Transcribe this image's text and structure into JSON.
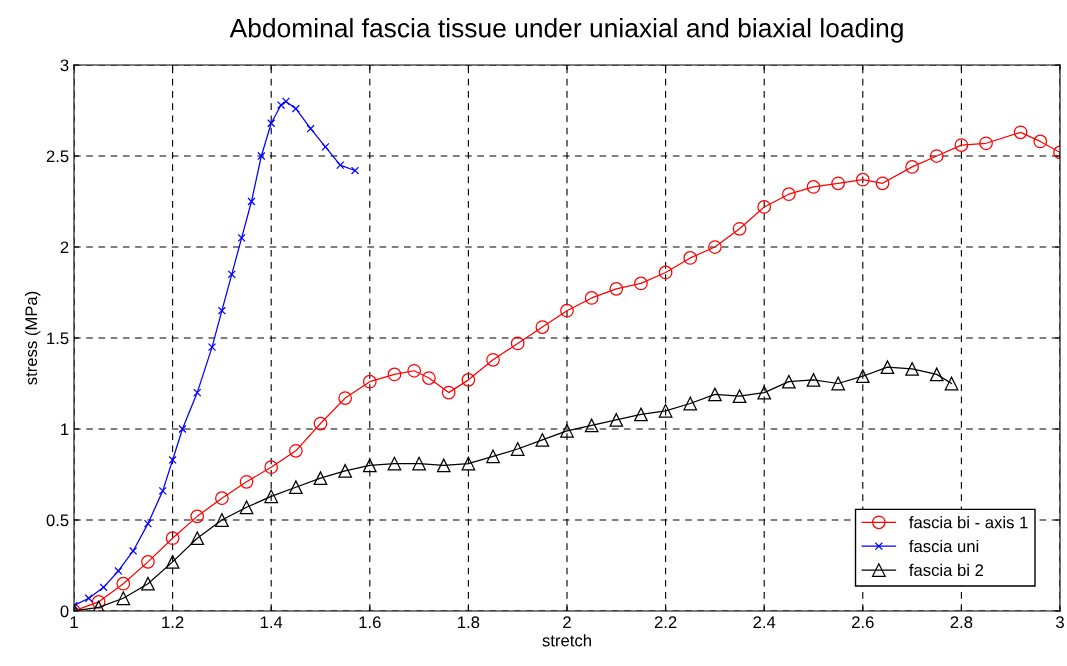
{
  "chart_data": {
    "type": "line",
    "title": "Abdominal fascia tissue under uniaxial and biaxial loading",
    "xlabel": "stretch",
    "ylabel": "stress (MPa)",
    "xlim": [
      1,
      3
    ],
    "xticks": [
      1,
      1.2,
      1.4,
      1.6,
      1.8,
      2,
      2.2,
      2.4,
      2.6,
      2.8,
      3
    ],
    "ylim": [
      0,
      3
    ],
    "yticks": [
      0,
      0.5,
      1,
      1.5,
      2,
      2.5,
      3
    ],
    "grid": true,
    "legend": "bottom right",
    "series": [
      {
        "name": "fascia bi - axis 1",
        "color": "#ff0000",
        "marker": "circle",
        "x": [
          1,
          1.05,
          1.1,
          1.15,
          1.2,
          1.25,
          1.3,
          1.35,
          1.4,
          1.45,
          1.5,
          1.55,
          1.6,
          1.65,
          1.69,
          1.72,
          1.76,
          1.8,
          1.85,
          1.9,
          1.95,
          2.0,
          2.05,
          2.1,
          2.15,
          2.2,
          2.25,
          2.3,
          2.35,
          2.4,
          2.45,
          2.5,
          2.55,
          2.6,
          2.64,
          2.7,
          2.75,
          2.8,
          2.85,
          2.92,
          2.96,
          3.0
        ],
        "values": [
          0.0,
          0.05,
          0.15,
          0.27,
          0.4,
          0.52,
          0.62,
          0.71,
          0.79,
          0.88,
          1.03,
          1.17,
          1.26,
          1.3,
          1.32,
          1.28,
          1.2,
          1.27,
          1.38,
          1.47,
          1.56,
          1.65,
          1.72,
          1.77,
          1.8,
          1.86,
          1.94,
          2.0,
          2.1,
          2.22,
          2.29,
          2.33,
          2.35,
          2.37,
          2.35,
          2.44,
          2.5,
          2.56,
          2.57,
          2.63,
          2.58,
          2.52
        ]
      },
      {
        "name": "fascia uni",
        "color": "#0000ff",
        "marker": "cross",
        "x": [
          1.0,
          1.03,
          1.06,
          1.09,
          1.12,
          1.15,
          1.18,
          1.2,
          1.22,
          1.25,
          1.28,
          1.3,
          1.32,
          1.34,
          1.36,
          1.38,
          1.4,
          1.42,
          1.43,
          1.45,
          1.48,
          1.51,
          1.54,
          1.57
        ],
        "values": [
          0.03,
          0.07,
          0.13,
          0.22,
          0.33,
          0.48,
          0.66,
          0.83,
          1.0,
          1.2,
          1.45,
          1.65,
          1.85,
          2.05,
          2.25,
          2.5,
          2.68,
          2.78,
          2.8,
          2.76,
          2.65,
          2.55,
          2.45,
          2.42
        ]
      },
      {
        "name": "fascia bi 2",
        "color": "#000000",
        "marker": "triangle",
        "x": [
          1,
          1.05,
          1.1,
          1.15,
          1.2,
          1.25,
          1.3,
          1.35,
          1.4,
          1.45,
          1.5,
          1.55,
          1.6,
          1.65,
          1.7,
          1.75,
          1.8,
          1.85,
          1.9,
          1.95,
          2.0,
          2.05,
          2.1,
          2.15,
          2.2,
          2.25,
          2.3,
          2.35,
          2.4,
          2.45,
          2.5,
          2.55,
          2.6,
          2.65,
          2.7,
          2.75,
          2.78
        ],
        "values": [
          0,
          0.02,
          0.07,
          0.15,
          0.27,
          0.4,
          0.5,
          0.57,
          0.63,
          0.68,
          0.73,
          0.77,
          0.8,
          0.81,
          0.81,
          0.8,
          0.81,
          0.85,
          0.89,
          0.94,
          0.99,
          1.02,
          1.05,
          1.08,
          1.1,
          1.14,
          1.19,
          1.18,
          1.2,
          1.26,
          1.27,
          1.25,
          1.29,
          1.34,
          1.33,
          1.3,
          1.25
        ]
      }
    ]
  }
}
